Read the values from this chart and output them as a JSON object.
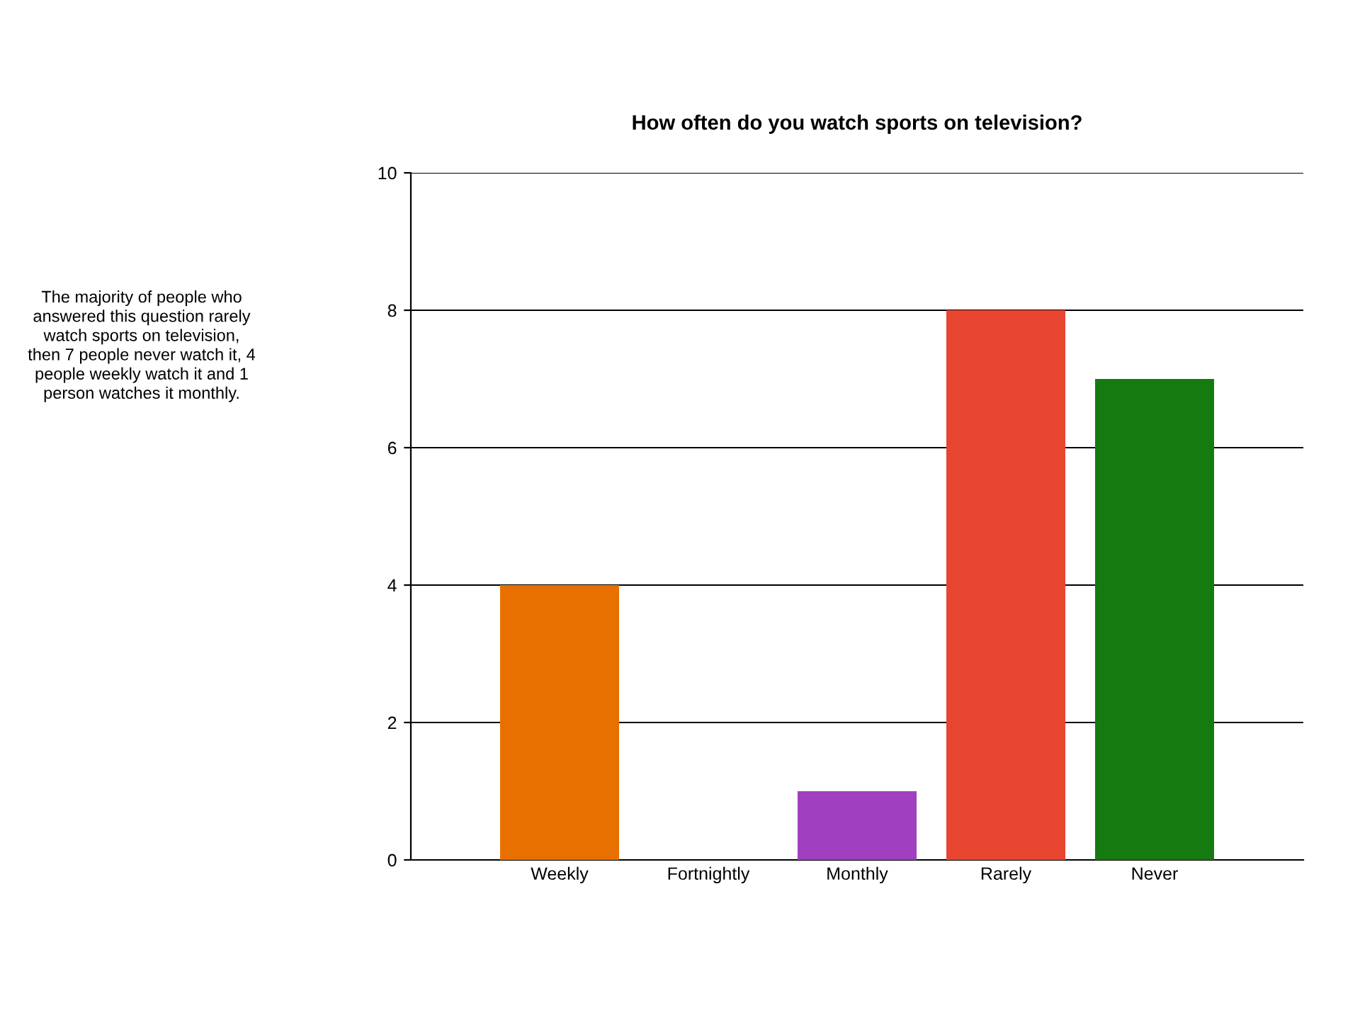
{
  "chart_data": {
    "type": "bar",
    "title": "How often do you watch sports on television?",
    "categories": [
      "Weekly",
      "Fortnightly",
      "Monthly",
      "Rarely",
      "Never"
    ],
    "values": [
      4,
      0,
      1,
      8,
      7
    ],
    "colors": [
      "#e87000",
      "#3366cc",
      "#a040c0",
      "#e84530",
      "#157a10"
    ],
    "ylim": [
      0,
      10
    ],
    "yticks": [
      0,
      2,
      4,
      6,
      8,
      10
    ],
    "grid": "y",
    "annotations": [
      "The majority of people who\nanswered this question rarely\nwatch sports on television,\nthen 7 people never watch it, 4\npeople weekly watch it and 1\nperson watches it monthly."
    ]
  }
}
